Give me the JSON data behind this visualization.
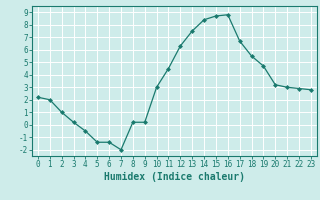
{
  "xlabel": "Humidex (Indice chaleur)",
  "x": [
    0,
    1,
    2,
    3,
    4,
    5,
    6,
    7,
    8,
    9,
    10,
    11,
    12,
    13,
    14,
    15,
    16,
    17,
    18,
    19,
    20,
    21,
    22,
    23
  ],
  "y": [
    2.2,
    2.0,
    1.0,
    0.2,
    -0.5,
    -1.4,
    -1.4,
    -2.0,
    0.2,
    0.2,
    3.0,
    4.5,
    6.3,
    7.5,
    8.4,
    8.7,
    8.8,
    6.7,
    5.5,
    4.7,
    3.2,
    3.0,
    2.9,
    2.8
  ],
  "line_color": "#1a7a6e",
  "marker": "D",
  "marker_size": 2.0,
  "background_color": "#ceecea",
  "grid_color": "#ffffff",
  "ylim": [
    -2.5,
    9.5
  ],
  "xlim": [
    -0.5,
    23.5
  ],
  "yticks": [
    -2,
    -1,
    0,
    1,
    2,
    3,
    4,
    5,
    6,
    7,
    8,
    9
  ],
  "xticks": [
    0,
    1,
    2,
    3,
    4,
    5,
    6,
    7,
    8,
    9,
    10,
    11,
    12,
    13,
    14,
    15,
    16,
    17,
    18,
    19,
    20,
    21,
    22,
    23
  ],
  "tick_label_fontsize": 5.5,
  "xlabel_fontsize": 7.0,
  "tick_color": "#1a7a6e",
  "axis_color": "#1a7a6e",
  "linewidth": 0.9
}
